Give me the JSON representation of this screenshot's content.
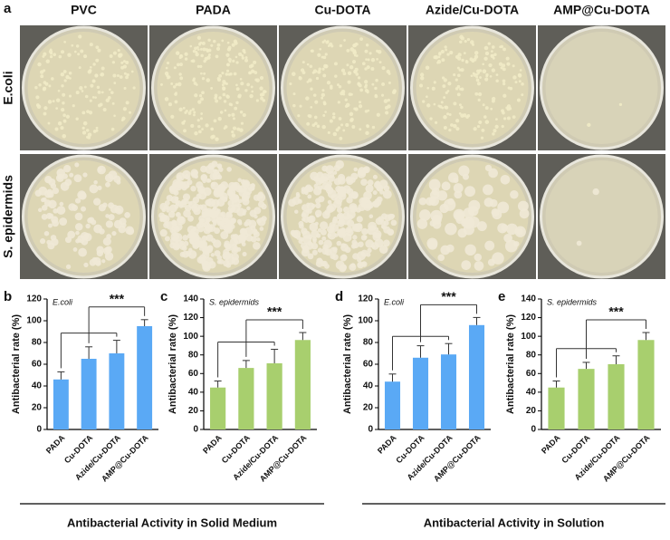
{
  "panel_a": {
    "label": "a",
    "columns": [
      "PVC",
      "PADA",
      "Cu-DOTA",
      "Azide/Cu-DOTA",
      "AMP@Cu-DOTA"
    ],
    "rows": [
      "E.coli",
      "S. epidermids"
    ]
  },
  "sections": [
    "Antibacterial Activity in Solid Medium",
    "Antibacterial Activity in Solution"
  ],
  "chart_data": [
    {
      "type": "bar",
      "panel": "b",
      "subtitle": "E.coli",
      "annotation": "***",
      "y_label": "Antibacterial rate (%)",
      "categories": [
        "PADA",
        "Cu-DOTA",
        "Azide/Cu-DOTA",
        "AMP@Cu-DOTA"
      ],
      "values": [
        46,
        65,
        70,
        95
      ],
      "errors": [
        7,
        11,
        12,
        6
      ],
      "color": "#5aa9f5",
      "ylim": [
        0,
        120
      ],
      "yticks": [
        0,
        20,
        40,
        60,
        80,
        100,
        120
      ]
    },
    {
      "type": "bar",
      "panel": "c",
      "subtitle": "S. epidermids",
      "annotation": "***",
      "y_label": "Antibacterial rate (%)",
      "categories": [
        "PADA",
        "Cu-DOTA",
        "Azide/Cu-DOTA",
        "AMP@Cu-DOTA"
      ],
      "values": [
        45,
        66,
        71,
        96
      ],
      "errors": [
        7,
        8,
        15,
        8
      ],
      "color": "#a8cf6e",
      "ylim": [
        0,
        140
      ],
      "yticks": [
        0,
        20,
        40,
        60,
        80,
        100,
        120,
        140
      ]
    },
    {
      "type": "bar",
      "panel": "d",
      "subtitle": "E.coli",
      "annotation": "***",
      "y_label": "Antibacterial rate (%)",
      "categories": [
        "PADA",
        "Cu-DOTA",
        "Azide/Cu-DOTA",
        "AMP@Cu-DOTA"
      ],
      "values": [
        44,
        66,
        69,
        96
      ],
      "errors": [
        7,
        11,
        10,
        7
      ],
      "color": "#5aa9f5",
      "ylim": [
        0,
        120
      ],
      "yticks": [
        0,
        20,
        40,
        60,
        80,
        100,
        120
      ]
    },
    {
      "type": "bar",
      "panel": "e",
      "subtitle": "S. epidermids",
      "annotation": "***",
      "y_label": "Antibacterial rate (%)",
      "categories": [
        "PADA",
        "Cu-DOTA",
        "Azide/Cu-DOTA",
        "AMP@Cu-DOTA"
      ],
      "values": [
        45,
        65,
        70,
        96
      ],
      "errors": [
        7,
        7,
        9,
        8
      ],
      "color": "#a8cf6e",
      "ylim": [
        0,
        140
      ],
      "yticks": [
        0,
        20,
        40,
        60,
        80,
        100,
        120,
        140
      ]
    }
  ]
}
